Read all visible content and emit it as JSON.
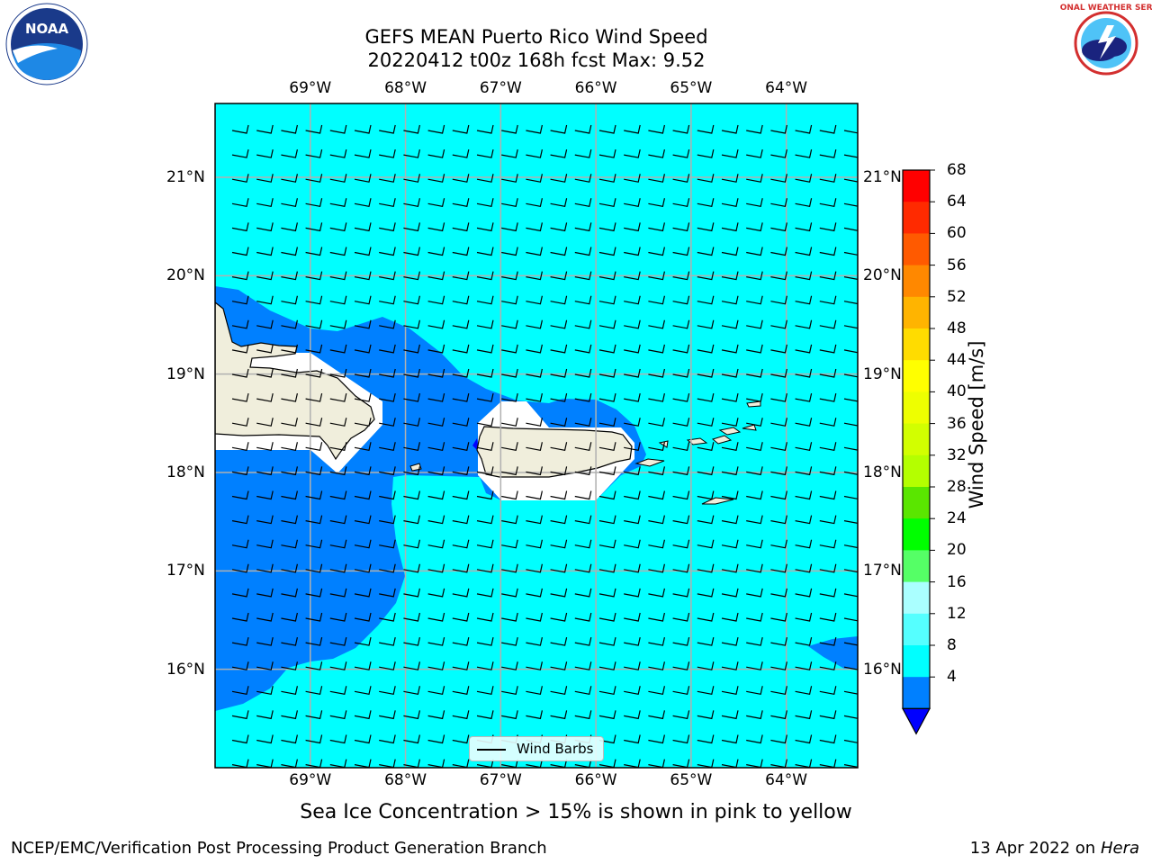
{
  "title_line1": "GEFS MEAN Puerto Rico Wind Speed",
  "title_line2": "20220412 t00z 168h fcst   Max: 9.52",
  "note": "Sea Ice Concentration > 15% is shown in pink to yellow",
  "footer_left": "NCEP/EMC/Verification Post Processing Product Generation Branch",
  "footer_date": "13 Apr 2022 on ",
  "footer_host": "Hera",
  "legend_label": "Wind Barbs",
  "logos": {
    "left": "NOAA",
    "right": "NATIONAL WEATHER SERVICE"
  },
  "map": {
    "lon_labels": [
      "69°W",
      "68°W",
      "67°W",
      "66°W",
      "65°W",
      "64°W"
    ],
    "lat_labels": [
      "21°N",
      "20°N",
      "19°N",
      "18°N",
      "17°N",
      "16°N"
    ],
    "lon_values": [
      -69,
      -68,
      -67,
      -66,
      -65,
      -64
    ],
    "lat_values": [
      21,
      20,
      19,
      18,
      17,
      16
    ],
    "extent": {
      "lon_min": -70.0,
      "lon_max": -63.25,
      "lat_min": 15.0,
      "lat_max": 21.75
    },
    "colors": {
      "sea_light": "#00ffff",
      "sea_dark": "#0080ff",
      "land": "#f0eedc",
      "white_gap": "#ffffff"
    }
  },
  "colorbar": {
    "title": "Wind Speed [m/s]",
    "ticks": [
      "68",
      "64",
      "60",
      "56",
      "52",
      "48",
      "44",
      "40",
      "36",
      "32",
      "28",
      "24",
      "20",
      "16",
      "12",
      "8",
      "4"
    ],
    "colors": [
      "#ff0000",
      "#ff2a00",
      "#ff5a00",
      "#ff8800",
      "#ffb400",
      "#ffdc00",
      "#ffff00",
      "#eeff00",
      "#d2ff00",
      "#b4ff00",
      "#5ae600",
      "#00ff00",
      "#55ff66",
      "#aaffff",
      "#55ffff",
      "#00ffff",
      "#0080ff"
    ],
    "extend_color": "#0000ff"
  }
}
